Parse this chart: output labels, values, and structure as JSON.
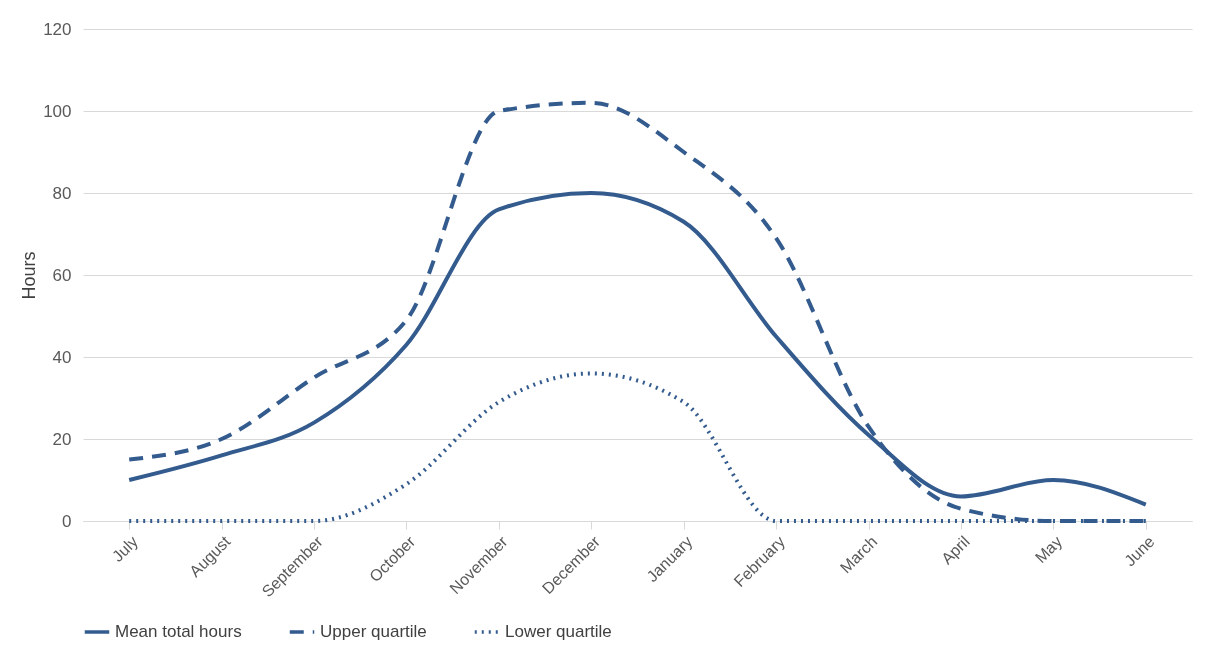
{
  "chart_data": {
    "type": "line",
    "ylabel": "Hours",
    "categories": [
      "July",
      "August",
      "September",
      "October",
      "November",
      "December",
      "January",
      "February",
      "March",
      "April",
      "May",
      "June"
    ],
    "ylim": [
      0,
      120
    ],
    "yticks": [
      0,
      20,
      40,
      60,
      80,
      100,
      120
    ],
    "grid": "y",
    "legend": "bottom",
    "marker": "none",
    "series": [
      {
        "name": "Mean total hours",
        "color": "#335b8e",
        "line_style": "solid",
        "values": [
          10,
          16,
          24,
          43,
          76,
          80,
          73,
          45,
          21,
          6,
          10,
          4
        ]
      },
      {
        "name": "Upper quartile",
        "color": "#335b8e",
        "line_style": "dashed",
        "values": [
          15,
          20,
          35,
          49,
          100,
          102,
          90,
          69,
          23,
          3,
          0,
          0
        ]
      },
      {
        "name": "Lower quartile",
        "color": "#335b8e",
        "line_style": "dotted",
        "values": [
          0,
          0,
          0,
          9,
          29,
          36,
          29,
          0,
          0,
          0,
          0,
          0
        ]
      }
    ]
  }
}
